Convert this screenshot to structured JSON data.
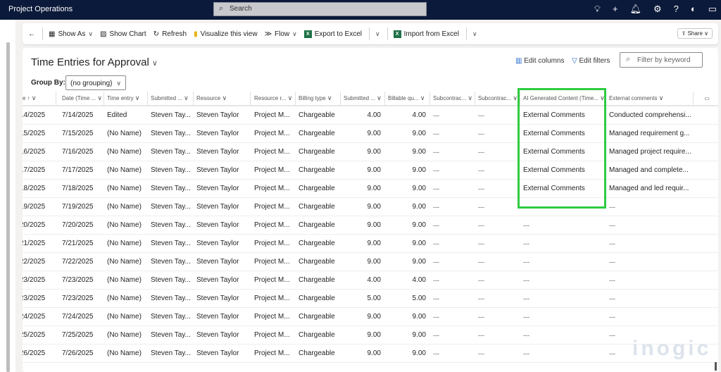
{
  "app": {
    "title": "Project Operations",
    "search_placeholder": "Search"
  },
  "toolbar": {
    "show_as": "Show As",
    "show_chart": "Show Chart",
    "refresh": "Refresh",
    "visualize": "Visualize this view",
    "flow": "Flow",
    "export": "Export to Excel",
    "import": "Import from Excel",
    "share": "Share"
  },
  "view": {
    "title": "Time Entries for Approval",
    "edit_columns": "Edit columns",
    "edit_filters": "Edit filters",
    "filter_placeholder": "Filter by keyword",
    "group_by_label": "Group By:",
    "group_by_value": "(no grouping)"
  },
  "columns": [
    "e ↑",
    "Date (Time ...",
    "Time entry",
    "Submitted ...",
    "Resource",
    "Resource r...",
    "Billing type",
    "Submitted ...",
    "Billable qu...",
    "Subcontrac...",
    "Subcontrac...",
    "AI Generated Content (Time...",
    "External comments"
  ],
  "rows": [
    [
      "14/2025",
      "7/14/2025",
      "Edited",
      "Steven Tay...",
      "Steven Taylor",
      "Project M...",
      "Chargeable",
      "4.00",
      "4.00",
      "---",
      "---",
      "External Comments",
      "Conducted comprehensi..."
    ],
    [
      "15/2025",
      "7/15/2025",
      "(No Name)",
      "Steven Tay...",
      "Steven Taylor",
      "Project M...",
      "Chargeable",
      "9.00",
      "9.00",
      "---",
      "---",
      "External Comments",
      "Managed requirement g..."
    ],
    [
      "16/2025",
      "7/16/2025",
      "(No Name)",
      "Steven Tay...",
      "Steven Taylor",
      "Project M...",
      "Chargeable",
      "9.00",
      "9.00",
      "---",
      "---",
      "External Comments",
      "Managed project require..."
    ],
    [
      "17/2025",
      "7/17/2025",
      "(No Name)",
      "Steven Tay...",
      "Steven Taylor",
      "Project M...",
      "Chargeable",
      "9.00",
      "9.00",
      "---",
      "---",
      "External Comments",
      "Managed and complete..."
    ],
    [
      "18/2025",
      "7/18/2025",
      "(No Name)",
      "Steven Tay...",
      "Steven Taylor",
      "Project M...",
      "Chargeable",
      "9.00",
      "9.00",
      "---",
      "---",
      "External Comments",
      "Managed and led requir..."
    ],
    [
      "19/2025",
      "7/19/2025",
      "(No Name)",
      "Steven Tay...",
      "Steven Taylor",
      "Project M...",
      "Chargeable",
      "9.00",
      "9.00",
      "---",
      "---",
      "---",
      "---"
    ],
    [
      "20/2025",
      "7/20/2025",
      "(No Name)",
      "Steven Tay...",
      "Steven Taylor",
      "Project M...",
      "Chargeable",
      "9.00",
      "9.00",
      "---",
      "---",
      "---",
      "---"
    ],
    [
      "21/2025",
      "7/21/2025",
      "(No Name)",
      "Steven Tay...",
      "Steven Taylor",
      "Project M...",
      "Chargeable",
      "9.00",
      "9.00",
      "---",
      "---",
      "---",
      "---"
    ],
    [
      "22/2025",
      "7/22/2025",
      "(No Name)",
      "Steven Tay...",
      "Steven Taylor",
      "Project M...",
      "Chargeable",
      "9.00",
      "9.00",
      "---",
      "---",
      "---",
      "---"
    ],
    [
      "23/2025",
      "7/23/2025",
      "(No Name)",
      "Steven Tay...",
      "Steven Taylor",
      "Project M...",
      "Chargeable",
      "4.00",
      "4.00",
      "---",
      "---",
      "---",
      "---"
    ],
    [
      "23/2025",
      "7/23/2025",
      "(No Name)",
      "Steven Tay...",
      "Steven Taylor",
      "Project M...",
      "Chargeable",
      "5.00",
      "5.00",
      "---",
      "---",
      "---",
      "---"
    ],
    [
      "24/2025",
      "7/24/2025",
      "(No Name)",
      "Steven Tay...",
      "Steven Taylor",
      "Project M...",
      "Chargeable",
      "9.00",
      "9.00",
      "---",
      "---",
      "---",
      "---"
    ],
    [
      "25/2025",
      "7/25/2025",
      "(No Name)",
      "Steven Tay...",
      "Steven Taylor",
      "Project M...",
      "Chargeable",
      "9.00",
      "9.00",
      "---",
      "---",
      "---",
      "---"
    ],
    [
      "26/2025",
      "7/26/2025",
      "(No Name)",
      "Steven Tay...",
      "Steven Taylor",
      "Project M...",
      "Chargeable",
      "9.00",
      "9.00",
      "---",
      "---",
      "---",
      "---"
    ]
  ],
  "watermark": "inogic",
  "colors": {
    "topbar": "#0b1a3a",
    "highlight": "#2ecc40"
  }
}
